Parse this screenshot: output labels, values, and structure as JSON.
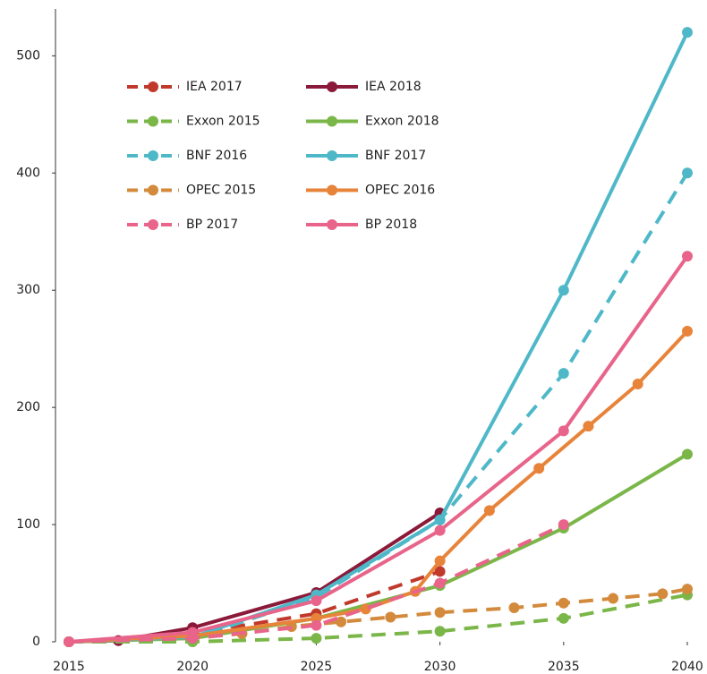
{
  "chart_data": {
    "type": "line",
    "xlim": [
      2015,
      2040
    ],
    "xticks": [
      2015,
      2020,
      2025,
      2030,
      2035,
      2040
    ],
    "ylim": [
      0,
      540
    ],
    "yticks": [
      0,
      100,
      200,
      300,
      400,
      500
    ],
    "series": [
      {
        "name": "IEA 2017",
        "color": "#c0392b",
        "dashed": true,
        "x": [
          2015,
          2017,
          2020,
          2025,
          2030
        ],
        "values": [
          0,
          1,
          7,
          24,
          60
        ]
      },
      {
        "name": "IEA 2018",
        "color": "#8b1a3a",
        "dashed": false,
        "x": [
          2015,
          2017,
          2020,
          2025,
          2030
        ],
        "values": [
          0,
          1,
          12,
          42,
          110
        ]
      },
      {
        "name": "Exxon 2015",
        "color": "#7ab648",
        "dashed": true,
        "x": [
          2015,
          2020,
          2025,
          2030,
          2035,
          2040
        ],
        "values": [
          0,
          0,
          3,
          9,
          20,
          40
        ]
      },
      {
        "name": "Exxon 2018",
        "color": "#7ab648",
        "dashed": false,
        "x": [
          2015,
          2020,
          2025,
          2030,
          2035,
          2040
        ],
        "values": [
          0,
          3,
          20,
          48,
          97,
          160
        ]
      },
      {
        "name": "BNF 2016",
        "color": "#4fb8c8",
        "dashed": true,
        "x": [
          2015,
          2020,
          2025,
          2030,
          2035,
          2040
        ],
        "values": [
          0,
          3,
          38,
          104,
          229,
          400
        ]
      },
      {
        "name": "BNF 2017",
        "color": "#4fb8c8",
        "dashed": false,
        "x": [
          2015,
          2020,
          2025,
          2030,
          2035,
          2040
        ],
        "values": [
          0,
          4,
          40,
          104,
          300,
          520
        ]
      },
      {
        "name": "OPEC 2015",
        "color": "#d48a3c",
        "dashed": true,
        "x": [
          2015,
          2020,
          2022,
          2024,
          2026,
          2028,
          2030,
          2033,
          2035,
          2037,
          2039,
          2040
        ],
        "values": [
          0,
          3,
          7,
          13,
          17,
          21,
          25,
          29,
          33,
          37,
          41,
          45
        ]
      },
      {
        "name": "OPEC 2016",
        "color": "#e8833a",
        "dashed": false,
        "x": [
          2015,
          2020,
          2025,
          2027,
          2029,
          2030,
          2032,
          2034,
          2036,
          2038,
          2040
        ],
        "values": [
          0,
          5,
          20,
          28,
          43,
          69,
          112,
          148,
          184,
          220,
          265
        ]
      },
      {
        "name": "BP 2017",
        "color": "#e8648a",
        "dashed": true,
        "x": [
          2015,
          2020,
          2025,
          2030,
          2035
        ],
        "values": [
          0,
          3,
          14,
          50,
          100
        ]
      },
      {
        "name": "BP 2018",
        "color": "#e8648a",
        "dashed": false,
        "x": [
          2015,
          2020,
          2025,
          2030,
          2035,
          2040
        ],
        "values": [
          0,
          8,
          35,
          95,
          180,
          329
        ]
      }
    ]
  }
}
